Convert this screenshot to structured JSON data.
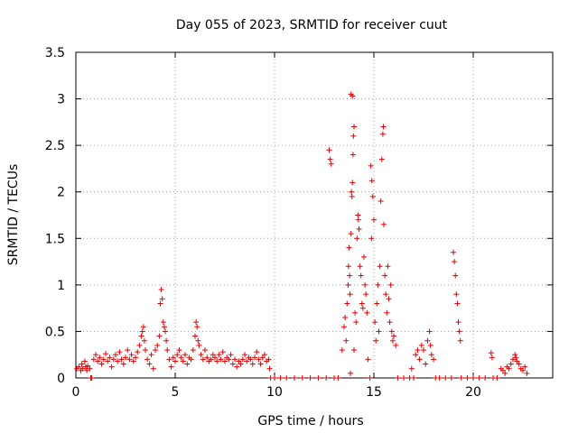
{
  "chart_data": {
    "type": "scatter",
    "title": "Day 055 of 2023, SRMTID for receiver cuut",
    "xlabel": "GPS time / hours",
    "ylabel": "SRMTID / TECUs",
    "xlim": [
      0,
      24
    ],
    "ylim": [
      0,
      3.5
    ],
    "xticks": [
      0,
      5,
      10,
      15,
      20
    ],
    "xtick_labels": [
      "0",
      "5",
      "10",
      "15",
      "20"
    ],
    "yticks": [
      0,
      0.5,
      1,
      1.5,
      2,
      2.5,
      3,
      3.5
    ],
    "ytick_labels": [
      "0",
      "0.5",
      "1",
      "1.5",
      "2",
      "2.5",
      "3",
      "3.5"
    ],
    "grid": true,
    "marker": "plus",
    "color": "#e00000",
    "series": [
      {
        "name": "SRMTID",
        "points": [
          [
            0.05,
            0.1
          ],
          [
            0.15,
            0.12
          ],
          [
            0.25,
            0.08
          ],
          [
            0.3,
            0.15
          ],
          [
            0.35,
            0.1
          ],
          [
            0.45,
            0.18
          ],
          [
            0.5,
            0.12
          ],
          [
            0.55,
            0.08
          ],
          [
            0.6,
            0.13
          ],
          [
            0.7,
            0.1
          ],
          [
            0.75,
            0.0
          ],
          [
            0.8,
            0.0
          ],
          [
            0.9,
            0.2
          ],
          [
            1.0,
            0.25
          ],
          [
            1.1,
            0.18
          ],
          [
            1.2,
            0.22
          ],
          [
            1.3,
            0.15
          ],
          [
            1.4,
            0.2
          ],
          [
            1.5,
            0.26
          ],
          [
            1.6,
            0.18
          ],
          [
            1.7,
            0.22
          ],
          [
            1.8,
            0.12
          ],
          [
            1.9,
            0.2
          ],
          [
            2.0,
            0.25
          ],
          [
            2.1,
            0.18
          ],
          [
            2.2,
            0.28
          ],
          [
            2.3,
            0.2
          ],
          [
            2.4,
            0.15
          ],
          [
            2.5,
            0.22
          ],
          [
            2.6,
            0.3
          ],
          [
            2.7,
            0.2
          ],
          [
            2.8,
            0.25
          ],
          [
            2.9,
            0.18
          ],
          [
            3.0,
            0.22
          ],
          [
            3.1,
            0.28
          ],
          [
            3.2,
            0.35
          ],
          [
            3.3,
            0.45
          ],
          [
            3.35,
            0.5
          ],
          [
            3.4,
            0.55
          ],
          [
            3.45,
            0.4
          ],
          [
            3.5,
            0.3
          ],
          [
            3.6,
            0.2
          ],
          [
            3.7,
            0.15
          ],
          [
            3.8,
            0.25
          ],
          [
            3.9,
            0.1
          ],
          [
            4.0,
            0.3
          ],
          [
            4.1,
            0.35
          ],
          [
            4.2,
            0.45
          ],
          [
            4.25,
            0.8
          ],
          [
            4.3,
            0.95
          ],
          [
            4.35,
            0.85
          ],
          [
            4.4,
            0.6
          ],
          [
            4.45,
            0.55
          ],
          [
            4.5,
            0.5
          ],
          [
            4.55,
            0.4
          ],
          [
            4.6,
            0.3
          ],
          [
            4.7,
            0.2
          ],
          [
            4.8,
            0.12
          ],
          [
            4.9,
            0.22
          ],
          [
            5.0,
            0.18
          ],
          [
            5.1,
            0.25
          ],
          [
            5.2,
            0.3
          ],
          [
            5.3,
            0.22
          ],
          [
            5.4,
            0.18
          ],
          [
            5.5,
            0.25
          ],
          [
            5.6,
            0.15
          ],
          [
            5.7,
            0.22
          ],
          [
            5.8,
            0.2
          ],
          [
            5.9,
            0.3
          ],
          [
            6.0,
            0.45
          ],
          [
            6.05,
            0.6
          ],
          [
            6.1,
            0.55
          ],
          [
            6.15,
            0.4
          ],
          [
            6.2,
            0.35
          ],
          [
            6.3,
            0.25
          ],
          [
            6.4,
            0.2
          ],
          [
            6.5,
            0.3
          ],
          [
            6.6,
            0.22
          ],
          [
            6.7,
            0.18
          ],
          [
            6.8,
            0.2
          ],
          [
            6.9,
            0.25
          ],
          [
            7.0,
            0.22
          ],
          [
            7.1,
            0.18
          ],
          [
            7.2,
            0.25
          ],
          [
            7.3,
            0.2
          ],
          [
            7.4,
            0.28
          ],
          [
            7.5,
            0.18
          ],
          [
            7.6,
            0.22
          ],
          [
            7.7,
            0.2
          ],
          [
            7.8,
            0.25
          ],
          [
            7.9,
            0.15
          ],
          [
            8.0,
            0.2
          ],
          [
            8.1,
            0.12
          ],
          [
            8.2,
            0.18
          ],
          [
            8.3,
            0.15
          ],
          [
            8.4,
            0.2
          ],
          [
            8.5,
            0.25
          ],
          [
            8.6,
            0.18
          ],
          [
            8.7,
            0.22
          ],
          [
            8.8,
            0.2
          ],
          [
            8.9,
            0.15
          ],
          [
            9.0,
            0.22
          ],
          [
            9.1,
            0.28
          ],
          [
            9.2,
            0.2
          ],
          [
            9.3,
            0.15
          ],
          [
            9.4,
            0.22
          ],
          [
            9.5,
            0.25
          ],
          [
            9.6,
            0.18
          ],
          [
            9.7,
            0.2
          ],
          [
            9.75,
            0.1
          ],
          [
            9.8,
            0.0
          ],
          [
            10.0,
            0.0
          ],
          [
            10.3,
            0.0
          ],
          [
            10.6,
            0.0
          ],
          [
            11.0,
            0.0
          ],
          [
            11.4,
            0.0
          ],
          [
            11.8,
            0.0
          ],
          [
            12.2,
            0.0
          ],
          [
            12.6,
            0.0
          ],
          [
            13.0,
            0.0
          ],
          [
            12.75,
            2.45
          ],
          [
            12.8,
            2.35
          ],
          [
            12.85,
            2.3
          ],
          [
            13.2,
            0.0
          ],
          [
            13.4,
            0.3
          ],
          [
            13.5,
            0.55
          ],
          [
            13.55,
            0.65
          ],
          [
            13.6,
            0.4
          ],
          [
            13.65,
            0.8
          ],
          [
            13.7,
            1.0
          ],
          [
            13.72,
            1.2
          ],
          [
            13.75,
            1.4
          ],
          [
            13.78,
            1.1
          ],
          [
            13.8,
            0.9
          ],
          [
            13.82,
            0.05
          ],
          [
            13.85,
            1.55
          ],
          [
            13.87,
            2.0
          ],
          [
            13.9,
            1.95
          ],
          [
            13.92,
            2.1
          ],
          [
            13.95,
            2.4
          ],
          [
            13.97,
            2.6
          ],
          [
            14.0,
            2.7
          ],
          [
            13.85,
            3.05
          ],
          [
            13.92,
            3.03
          ],
          [
            14.0,
            0.3
          ],
          [
            14.05,
            0.7
          ],
          [
            14.1,
            0.6
          ],
          [
            14.15,
            1.5
          ],
          [
            14.2,
            1.75
          ],
          [
            14.22,
            1.7
          ],
          [
            14.25,
            1.6
          ],
          [
            14.3,
            1.2
          ],
          [
            14.35,
            1.1
          ],
          [
            14.4,
            0.8
          ],
          [
            14.45,
            0.75
          ],
          [
            14.5,
            1.3
          ],
          [
            14.55,
            1.0
          ],
          [
            14.6,
            0.9
          ],
          [
            14.65,
            0.7
          ],
          [
            14.7,
            0.2
          ],
          [
            14.8,
            0.0
          ],
          [
            14.85,
            2.28
          ],
          [
            14.88,
            1.5
          ],
          [
            14.9,
            2.12
          ],
          [
            14.95,
            1.95
          ],
          [
            15.0,
            1.7
          ],
          [
            15.05,
            0.6
          ],
          [
            15.1,
            0.4
          ],
          [
            15.15,
            0.8
          ],
          [
            15.2,
            1.0
          ],
          [
            15.25,
            0.5
          ],
          [
            15.3,
            1.2
          ],
          [
            15.35,
            1.9
          ],
          [
            15.4,
            2.35
          ],
          [
            15.45,
            2.62
          ],
          [
            15.48,
            2.7
          ],
          [
            15.5,
            1.65
          ],
          [
            15.55,
            1.1
          ],
          [
            15.6,
            0.9
          ],
          [
            15.65,
            0.7
          ],
          [
            15.7,
            1.2
          ],
          [
            15.75,
            0.85
          ],
          [
            15.8,
            0.6
          ],
          [
            15.85,
            1.0
          ],
          [
            15.9,
            0.5
          ],
          [
            15.95,
            0.4
          ],
          [
            16.0,
            0.45
          ],
          [
            16.1,
            0.35
          ],
          [
            16.2,
            0.0
          ],
          [
            16.5,
            0.0
          ],
          [
            16.8,
            0.0
          ],
          [
            16.9,
            0.1
          ],
          [
            17.0,
            0.0
          ],
          [
            17.1,
            0.25
          ],
          [
            17.2,
            0.3
          ],
          [
            17.3,
            0.2
          ],
          [
            17.4,
            0.35
          ],
          [
            17.5,
            0.3
          ],
          [
            17.6,
            0.15
          ],
          [
            17.7,
            0.4
          ],
          [
            17.8,
            0.5
          ],
          [
            17.85,
            0.35
          ],
          [
            17.9,
            0.25
          ],
          [
            18.0,
            0.2
          ],
          [
            18.1,
            0.0
          ],
          [
            18.3,
            0.0
          ],
          [
            18.6,
            0.0
          ],
          [
            18.9,
            0.0
          ],
          [
            19.0,
            1.35
          ],
          [
            19.05,
            1.25
          ],
          [
            19.1,
            1.1
          ],
          [
            19.15,
            0.9
          ],
          [
            19.2,
            0.8
          ],
          [
            19.25,
            0.6
          ],
          [
            19.3,
            0.5
          ],
          [
            19.35,
            0.4
          ],
          [
            19.4,
            0.0
          ],
          [
            19.7,
            0.0
          ],
          [
            20.0,
            0.0
          ],
          [
            20.3,
            0.0
          ],
          [
            20.6,
            0.0
          ],
          [
            20.9,
            0.27
          ],
          [
            20.95,
            0.22
          ],
          [
            21.0,
            0.0
          ],
          [
            21.2,
            0.0
          ],
          [
            21.4,
            0.1
          ],
          [
            21.5,
            0.08
          ],
          [
            21.6,
            0.05
          ],
          [
            21.7,
            0.12
          ],
          [
            21.8,
            0.1
          ],
          [
            21.9,
            0.15
          ],
          [
            22.0,
            0.2
          ],
          [
            22.1,
            0.25
          ],
          [
            22.15,
            0.22
          ],
          [
            22.2,
            0.18
          ],
          [
            22.3,
            0.15
          ],
          [
            22.4,
            0.1
          ],
          [
            22.5,
            0.08
          ],
          [
            22.6,
            0.12
          ],
          [
            22.7,
            0.05
          ]
        ]
      }
    ]
  }
}
